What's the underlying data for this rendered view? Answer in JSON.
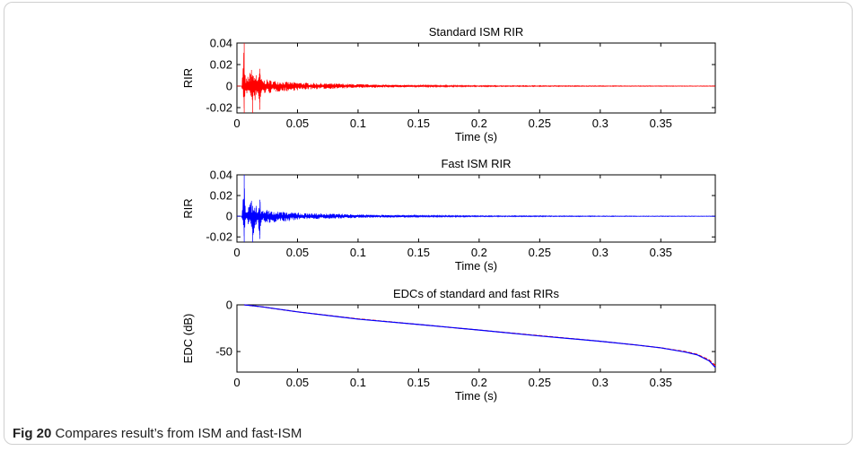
{
  "caption": {
    "label": "Fig 20",
    "text": "Compares result’s from ISM and fast-ISM"
  },
  "chart_data": [
    {
      "type": "line",
      "title": "Standard ISM RIR",
      "xlabel": "Time (s)",
      "ylabel": "RIR",
      "xlim": [
        0,
        0.395
      ],
      "ylim": [
        -0.025,
        0.04
      ],
      "xticks": [
        0,
        0.05,
        0.1,
        0.15,
        0.2,
        0.25,
        0.3,
        0.35
      ],
      "xtick_labels": [
        "0",
        "0.05",
        "0.1",
        "0.15",
        "0.2",
        "0.25",
        "0.3",
        "0.35"
      ],
      "yticks": [
        -0.02,
        0,
        0.02,
        0.04
      ],
      "ytick_labels": [
        "-0.02",
        "0",
        "0.02",
        "0.04"
      ],
      "series": [
        {
          "color": "#ff0000",
          "x": [
            0.0,
            0.004,
            0.006,
            0.007,
            0.008,
            0.012,
            0.013,
            0.016,
            0.018,
            0.019,
            0.02,
            0.021,
            0.024,
            0.026,
            0.03,
            0.035,
            0.04,
            0.05,
            0.06,
            0.08,
            0.1,
            0.15,
            0.2,
            0.3,
            0.395
          ],
          "env": [
            0.0,
            0.0,
            0.04,
            0.002,
            0.008,
            0.015,
            0.01,
            0.01,
            0.008,
            0.016,
            0.007,
            0.006,
            0.006,
            0.006,
            0.005,
            0.005,
            0.004,
            0.0035,
            0.003,
            0.0025,
            0.0018,
            0.0008,
            0.0005,
            0.0003,
            0.0002
          ],
          "min": [
            0.0,
            0.0,
            -0.025,
            -0.005,
            -0.007,
            -0.01,
            -0.025,
            -0.008,
            -0.012,
            -0.022,
            -0.008,
            -0.007,
            -0.007,
            -0.007,
            -0.006,
            -0.005,
            -0.005,
            -0.004,
            -0.003,
            -0.0025,
            -0.0018,
            -0.0008,
            -0.0005,
            -0.0003,
            -0.0002
          ]
        }
      ]
    },
    {
      "type": "line",
      "title": "Fast ISM RIR",
      "xlabel": "Time (s)",
      "ylabel": "RIR",
      "xlim": [
        0,
        0.395
      ],
      "ylim": [
        -0.025,
        0.04
      ],
      "xticks": [
        0,
        0.05,
        0.1,
        0.15,
        0.2,
        0.25,
        0.3,
        0.35
      ],
      "xtick_labels": [
        "0",
        "0.05",
        "0.1",
        "0.15",
        "0.2",
        "0.25",
        "0.3",
        "0.35"
      ],
      "yticks": [
        -0.02,
        0,
        0.02,
        0.04
      ],
      "ytick_labels": [
        "-0.02",
        "0",
        "0.02",
        "0.04"
      ],
      "series": [
        {
          "color": "#0000ff",
          "x": [
            0.0,
            0.004,
            0.006,
            0.007,
            0.008,
            0.012,
            0.013,
            0.016,
            0.018,
            0.019,
            0.02,
            0.021,
            0.024,
            0.026,
            0.03,
            0.035,
            0.04,
            0.05,
            0.06,
            0.08,
            0.1,
            0.15,
            0.2,
            0.3,
            0.395
          ],
          "env": [
            0.0,
            0.0,
            0.04,
            0.002,
            0.008,
            0.015,
            0.01,
            0.01,
            0.008,
            0.016,
            0.007,
            0.006,
            0.006,
            0.006,
            0.005,
            0.005,
            0.004,
            0.0035,
            0.003,
            0.0025,
            0.0018,
            0.0008,
            0.0005,
            0.0003,
            0.0002
          ],
          "min": [
            0.0,
            0.0,
            -0.025,
            -0.005,
            -0.007,
            -0.01,
            -0.025,
            -0.008,
            -0.012,
            -0.022,
            -0.008,
            -0.007,
            -0.007,
            -0.007,
            -0.006,
            -0.005,
            -0.005,
            -0.004,
            -0.003,
            -0.0025,
            -0.0018,
            -0.0008,
            -0.0005,
            -0.0003,
            -0.0002
          ]
        }
      ]
    },
    {
      "type": "line",
      "title": "EDCs of standard and fast RIRs",
      "xlabel": "Time (s)",
      "ylabel": "EDC (dB)",
      "xlim": [
        0,
        0.395
      ],
      "ylim": [
        -72,
        0
      ],
      "xticks": [
        0,
        0.05,
        0.1,
        0.15,
        0.2,
        0.25,
        0.3,
        0.35
      ],
      "xtick_labels": [
        "0",
        "0.05",
        "0.1",
        "0.15",
        "0.2",
        "0.25",
        "0.3",
        "0.35"
      ],
      "yticks": [
        -50,
        0
      ],
      "ytick_labels": [
        "-50",
        "0"
      ],
      "series": [
        {
          "color": "#ff0000",
          "x": [
            0.006,
            0.02,
            0.05,
            0.1,
            0.15,
            0.2,
            0.25,
            0.3,
            0.33,
            0.35,
            0.37,
            0.38,
            0.39,
            0.395
          ],
          "y": [
            0,
            -2,
            -7.5,
            -15,
            -21,
            -27,
            -33,
            -39,
            -43,
            -46,
            -50,
            -53,
            -59,
            -65
          ]
        },
        {
          "color": "#0000ff",
          "x": [
            0.006,
            0.02,
            0.05,
            0.1,
            0.15,
            0.2,
            0.25,
            0.3,
            0.33,
            0.35,
            0.37,
            0.38,
            0.39,
            0.395
          ],
          "y": [
            0,
            -2,
            -7.5,
            -15.3,
            -21,
            -27,
            -33.3,
            -39,
            -43,
            -46,
            -50.5,
            -53.5,
            -60,
            -67
          ]
        }
      ]
    }
  ]
}
